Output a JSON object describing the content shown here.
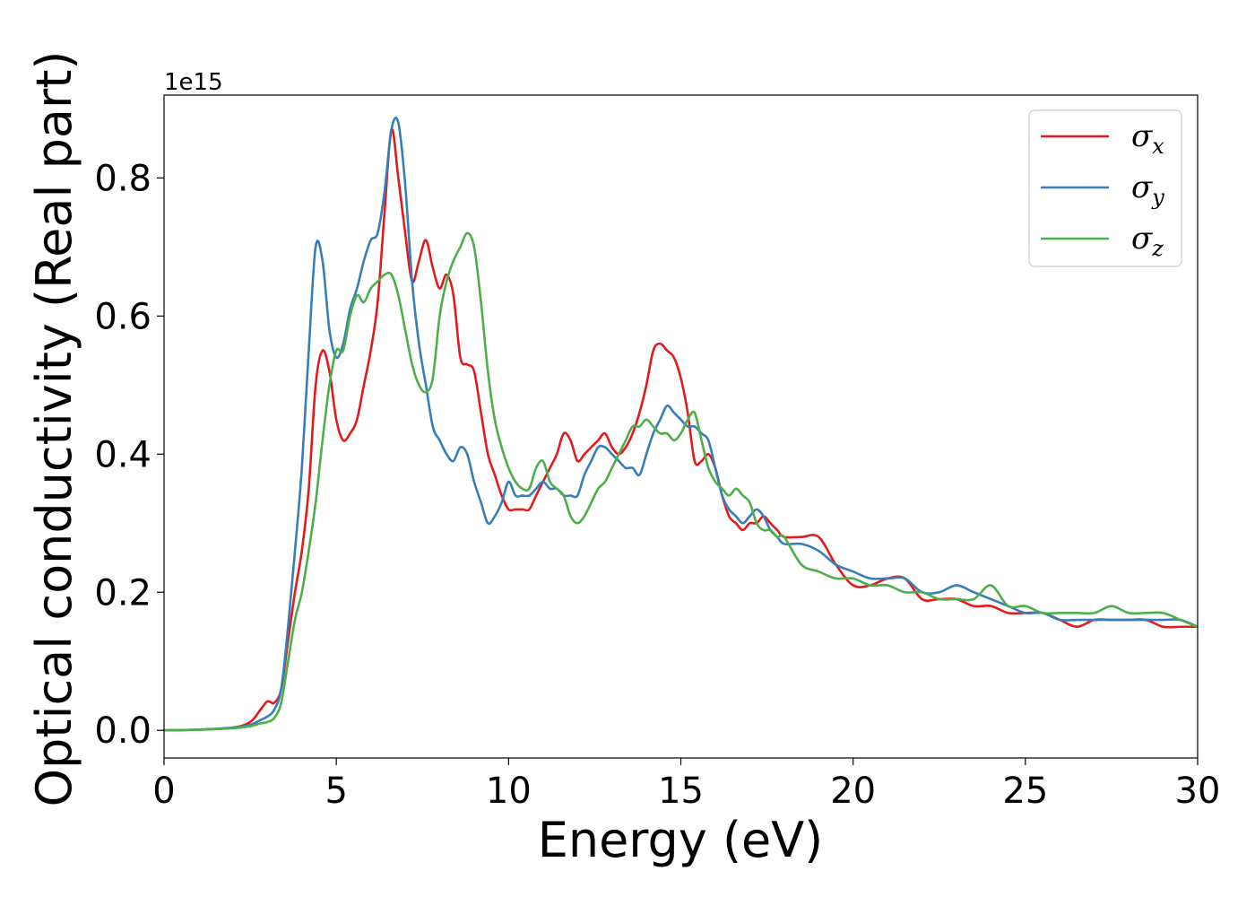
{
  "chart_data": {
    "type": "line",
    "xlabel": "Energy (eV)",
    "ylabel": "Optical conductivity (Real part)",
    "y_offset_label": "1e15",
    "xlim": [
      0,
      30
    ],
    "ylim": [
      -0.04,
      0.92
    ],
    "xticks": [
      0,
      5,
      10,
      15,
      20,
      25,
      30
    ],
    "xtick_labels": [
      "0",
      "5",
      "10",
      "15",
      "20",
      "25",
      "30"
    ],
    "yticks": [
      0.0,
      0.2,
      0.4,
      0.6,
      0.8
    ],
    "ytick_labels": [
      "0.0",
      "0.2",
      "0.4",
      "0.6",
      "0.8"
    ],
    "grid": false,
    "legend_position": "top-right",
    "series": [
      {
        "name": "σx",
        "symbol": "σ",
        "subscript": "x",
        "color": "#e41a1c",
        "x": [
          0,
          1,
          2,
          2.5,
          2.8,
          3.0,
          3.2,
          3.4,
          3.6,
          3.8,
          4.0,
          4.2,
          4.4,
          4.6,
          4.8,
          5.0,
          5.2,
          5.4,
          5.6,
          5.8,
          6.0,
          6.2,
          6.4,
          6.6,
          6.8,
          7.0,
          7.2,
          7.4,
          7.6,
          7.8,
          8.0,
          8.2,
          8.4,
          8.6,
          8.8,
          9.0,
          9.2,
          9.4,
          9.6,
          9.8,
          10.0,
          10.2,
          10.4,
          10.6,
          10.8,
          11.0,
          11.2,
          11.4,
          11.6,
          11.8,
          12.0,
          12.2,
          12.4,
          12.6,
          12.8,
          13.0,
          13.2,
          13.4,
          13.6,
          13.8,
          14.0,
          14.2,
          14.4,
          14.6,
          14.8,
          15.0,
          15.2,
          15.4,
          15.6,
          15.8,
          16.0,
          16.2,
          16.4,
          16.6,
          16.8,
          17.0,
          17.2,
          17.4,
          17.6,
          17.8,
          18.0,
          18.5,
          19.0,
          19.5,
          20.0,
          20.5,
          21.0,
          21.5,
          22.0,
          22.5,
          23.0,
          23.5,
          24.0,
          24.5,
          25.0,
          25.5,
          26.0,
          26.5,
          27.0,
          27.5,
          28.0,
          28.5,
          29.0,
          29.5,
          30.0
        ],
        "values": [
          0.0,
          0.001,
          0.004,
          0.012,
          0.03,
          0.042,
          0.04,
          0.06,
          0.13,
          0.2,
          0.26,
          0.35,
          0.5,
          0.55,
          0.52,
          0.45,
          0.42,
          0.43,
          0.45,
          0.5,
          0.55,
          0.62,
          0.75,
          0.87,
          0.8,
          0.72,
          0.65,
          0.68,
          0.71,
          0.67,
          0.64,
          0.66,
          0.63,
          0.54,
          0.53,
          0.52,
          0.46,
          0.4,
          0.37,
          0.34,
          0.32,
          0.32,
          0.32,
          0.32,
          0.34,
          0.36,
          0.38,
          0.4,
          0.43,
          0.42,
          0.39,
          0.4,
          0.41,
          0.42,
          0.43,
          0.41,
          0.4,
          0.41,
          0.43,
          0.46,
          0.5,
          0.55,
          0.56,
          0.55,
          0.54,
          0.51,
          0.46,
          0.39,
          0.39,
          0.4,
          0.38,
          0.34,
          0.31,
          0.3,
          0.29,
          0.3,
          0.3,
          0.31,
          0.3,
          0.29,
          0.28,
          0.28,
          0.28,
          0.24,
          0.21,
          0.21,
          0.22,
          0.22,
          0.19,
          0.19,
          0.19,
          0.18,
          0.18,
          0.17,
          0.17,
          0.17,
          0.16,
          0.15,
          0.16,
          0.16,
          0.16,
          0.16,
          0.15,
          0.15,
          0.15
        ],
        "label": "σx"
      },
      {
        "name": "σy",
        "symbol": "σ",
        "subscript": "y",
        "color": "#377eb8",
        "x": [
          0,
          1,
          2,
          2.5,
          2.8,
          3.0,
          3.2,
          3.4,
          3.6,
          3.8,
          4.0,
          4.2,
          4.4,
          4.6,
          4.8,
          5.0,
          5.2,
          5.4,
          5.6,
          5.8,
          6.0,
          6.2,
          6.4,
          6.6,
          6.8,
          7.0,
          7.2,
          7.4,
          7.6,
          7.8,
          8.0,
          8.2,
          8.4,
          8.6,
          8.8,
          9.0,
          9.2,
          9.4,
          9.6,
          9.8,
          10.0,
          10.2,
          10.4,
          10.6,
          10.8,
          11.0,
          11.2,
          11.4,
          11.6,
          11.8,
          12.0,
          12.2,
          12.4,
          12.6,
          12.8,
          13.0,
          13.2,
          13.4,
          13.6,
          13.8,
          14.0,
          14.2,
          14.4,
          14.6,
          14.8,
          15.0,
          15.2,
          15.4,
          15.6,
          15.8,
          16.0,
          16.2,
          16.4,
          16.6,
          16.8,
          17.0,
          17.2,
          17.4,
          17.6,
          17.8,
          18.0,
          18.5,
          19.0,
          19.5,
          20.0,
          20.5,
          21.0,
          21.5,
          22.0,
          22.5,
          23.0,
          23.5,
          24.0,
          24.5,
          25.0,
          25.5,
          26.0,
          26.5,
          27.0,
          27.5,
          28.0,
          28.5,
          29.0,
          29.5,
          30.0
        ],
        "values": [
          0.0,
          0.001,
          0.004,
          0.008,
          0.015,
          0.02,
          0.03,
          0.06,
          0.15,
          0.26,
          0.38,
          0.55,
          0.7,
          0.68,
          0.58,
          0.54,
          0.56,
          0.61,
          0.64,
          0.68,
          0.71,
          0.72,
          0.78,
          0.87,
          0.88,
          0.79,
          0.65,
          0.56,
          0.5,
          0.44,
          0.42,
          0.4,
          0.39,
          0.41,
          0.4,
          0.36,
          0.33,
          0.3,
          0.31,
          0.33,
          0.36,
          0.34,
          0.34,
          0.34,
          0.35,
          0.36,
          0.35,
          0.35,
          0.34,
          0.34,
          0.34,
          0.37,
          0.39,
          0.41,
          0.41,
          0.4,
          0.39,
          0.38,
          0.38,
          0.37,
          0.4,
          0.43,
          0.45,
          0.47,
          0.46,
          0.45,
          0.44,
          0.44,
          0.43,
          0.42,
          0.38,
          0.34,
          0.32,
          0.31,
          0.3,
          0.31,
          0.32,
          0.31,
          0.29,
          0.28,
          0.27,
          0.27,
          0.26,
          0.24,
          0.23,
          0.22,
          0.22,
          0.22,
          0.2,
          0.2,
          0.21,
          0.2,
          0.19,
          0.18,
          0.17,
          0.17,
          0.16,
          0.16,
          0.16,
          0.16,
          0.16,
          0.16,
          0.16,
          0.16,
          0.15
        ],
        "label": "σy"
      },
      {
        "name": "σz",
        "symbol": "σ",
        "subscript": "z",
        "color": "#4daf4a",
        "x": [
          0,
          1,
          2,
          2.5,
          2.8,
          3.0,
          3.2,
          3.4,
          3.6,
          3.8,
          4.0,
          4.2,
          4.4,
          4.6,
          4.8,
          5.0,
          5.2,
          5.4,
          5.6,
          5.8,
          6.0,
          6.2,
          6.4,
          6.6,
          6.8,
          7.0,
          7.2,
          7.4,
          7.6,
          7.8,
          8.0,
          8.2,
          8.4,
          8.6,
          8.8,
          9.0,
          9.2,
          9.4,
          9.6,
          9.8,
          10.0,
          10.2,
          10.4,
          10.6,
          10.8,
          11.0,
          11.2,
          11.4,
          11.6,
          11.8,
          12.0,
          12.2,
          12.4,
          12.6,
          12.8,
          13.0,
          13.2,
          13.4,
          13.6,
          13.8,
          14.0,
          14.2,
          14.4,
          14.6,
          14.8,
          15.0,
          15.2,
          15.4,
          15.6,
          15.8,
          16.0,
          16.2,
          16.4,
          16.6,
          16.8,
          17.0,
          17.2,
          17.4,
          17.6,
          17.8,
          18.0,
          18.5,
          19.0,
          19.5,
          20.0,
          20.5,
          21.0,
          21.5,
          22.0,
          22.5,
          23.0,
          23.5,
          24.0,
          24.5,
          25.0,
          25.5,
          26.0,
          26.5,
          27.0,
          27.5,
          28.0,
          28.5,
          29.0,
          29.5,
          30.0
        ],
        "values": [
          0.0,
          0.001,
          0.003,
          0.006,
          0.01,
          0.012,
          0.018,
          0.04,
          0.1,
          0.16,
          0.2,
          0.26,
          0.33,
          0.42,
          0.5,
          0.55,
          0.55,
          0.6,
          0.63,
          0.62,
          0.64,
          0.65,
          0.66,
          0.66,
          0.63,
          0.58,
          0.53,
          0.5,
          0.49,
          0.51,
          0.6,
          0.65,
          0.68,
          0.7,
          0.72,
          0.7,
          0.62,
          0.52,
          0.45,
          0.41,
          0.38,
          0.36,
          0.35,
          0.35,
          0.38,
          0.39,
          0.36,
          0.35,
          0.34,
          0.31,
          0.3,
          0.31,
          0.33,
          0.35,
          0.36,
          0.38,
          0.4,
          0.42,
          0.44,
          0.44,
          0.45,
          0.44,
          0.43,
          0.43,
          0.42,
          0.43,
          0.45,
          0.46,
          0.42,
          0.38,
          0.36,
          0.35,
          0.34,
          0.35,
          0.34,
          0.33,
          0.3,
          0.29,
          0.29,
          0.28,
          0.28,
          0.24,
          0.23,
          0.22,
          0.22,
          0.21,
          0.21,
          0.2,
          0.2,
          0.19,
          0.19,
          0.19,
          0.21,
          0.18,
          0.18,
          0.17,
          0.17,
          0.17,
          0.17,
          0.18,
          0.17,
          0.17,
          0.17,
          0.16,
          0.15
        ],
        "label": "σz"
      }
    ]
  }
}
